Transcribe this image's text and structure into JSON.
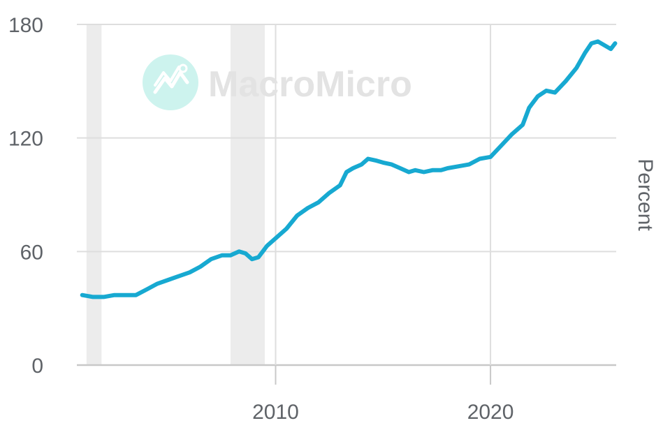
{
  "watermark": {
    "text": "MacroMicro",
    "icon": "macromicro-logo-icon",
    "color": "#cdf3ee"
  },
  "colors": {
    "line": "#17a9d1",
    "grid": "#dedede",
    "recession": "#ececec",
    "axis": "#c8c8c8"
  },
  "chart_data": {
    "type": "line",
    "ylabel": "Percent",
    "ylim": [
      0,
      180
    ],
    "xlim": [
      2000.75,
      2025.85
    ],
    "yticks": [
      0,
      60,
      120,
      180
    ],
    "xticks": [
      2010,
      2020
    ],
    "grid": true,
    "recession_shading": [
      [
        2001.2,
        2001.9
      ],
      [
        2007.9,
        2009.5
      ]
    ],
    "series": [
      {
        "x": [
          2001.0,
          2001.5,
          2002.0,
          2002.5,
          2003.0,
          2003.5,
          2004.0,
          2004.5,
          2005.0,
          2005.5,
          2006.0,
          2006.5,
          2007.0,
          2007.5,
          2007.9,
          2008.3,
          2008.6,
          2008.9,
          2009.2,
          2009.6,
          2010.0,
          2010.5,
          2011.0,
          2011.5,
          2012.0,
          2012.5,
          2013.0,
          2013.3,
          2013.6,
          2014.0,
          2014.3,
          2014.7,
          2015.0,
          2015.4,
          2015.8,
          2016.2,
          2016.5,
          2016.9,
          2017.3,
          2017.7,
          2018.0,
          2018.5,
          2019.0,
          2019.5,
          2020.0,
          2020.5,
          2021.0,
          2021.5,
          2021.8,
          2022.2,
          2022.6,
          2023.0,
          2023.5,
          2024.0,
          2024.4,
          2024.7,
          2025.0,
          2025.3,
          2025.6,
          2025.8
        ],
        "y": [
          37,
          36,
          36,
          37,
          37,
          37,
          40,
          43,
          45,
          47,
          49,
          52,
          56,
          58,
          58,
          60,
          59,
          56,
          57,
          63,
          67,
          72,
          79,
          83,
          86,
          91,
          95,
          102,
          104,
          106,
          109,
          108,
          107,
          106,
          104,
          102,
          103,
          102,
          103,
          103,
          104,
          105,
          106,
          109,
          110,
          116,
          122,
          127,
          136,
          142,
          145,
          144,
          150,
          157,
          165,
          170,
          171,
          169,
          167,
          170
        ]
      }
    ]
  }
}
